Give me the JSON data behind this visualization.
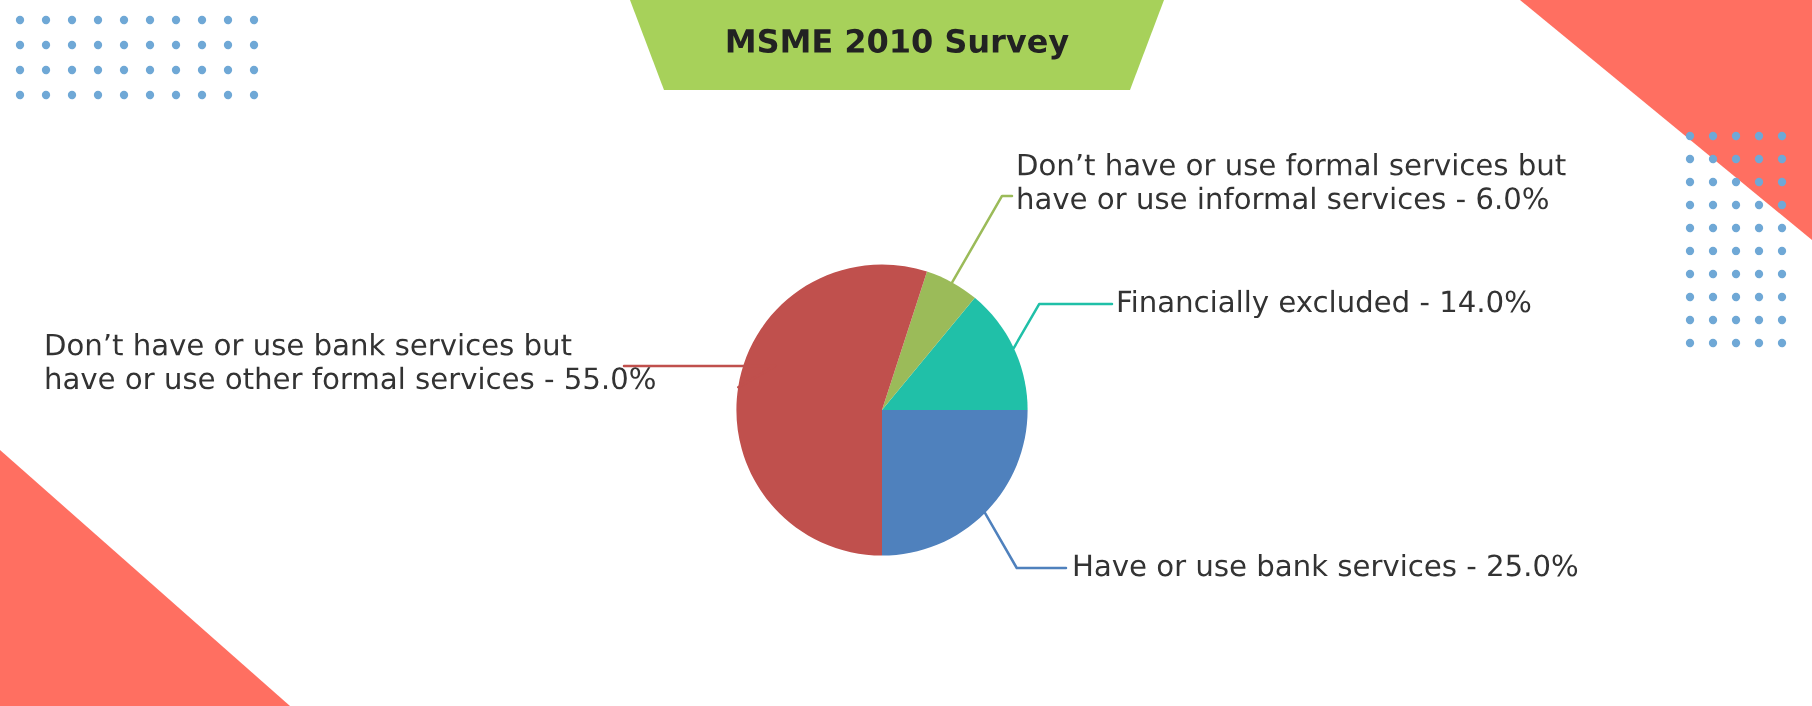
{
  "chart_data": {
    "type": "pie",
    "title": "MSME 2010 Survey",
    "categories": [
      "Financially excluded",
      "Don’t have or use formal services but\nhave or use informal services",
      "Don’t have or use bank services but\nhave or use other formal services",
      "Have or use bank services"
    ],
    "values": [
      14.0,
      6.0,
      55.0,
      25.0
    ],
    "colors": [
      "#20c0a8",
      "#9bbb59",
      "#c0504d",
      "#4f81bd"
    ],
    "value_labels": [
      "14.0%",
      "6.0%",
      "55.0%",
      "25.0%"
    ],
    "legend": false
  }
}
